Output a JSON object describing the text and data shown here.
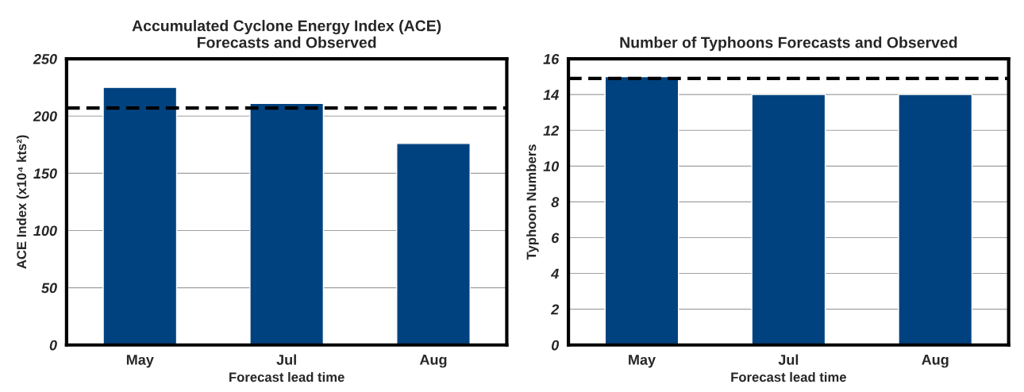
{
  "chart_data": [
    {
      "type": "bar",
      "title": "Accumulated Cyclone Energy Index (ACE)\nForecasts and Observed",
      "xlabel": "Forecast lead time",
      "ylabel": "ACE Index (x10⁴ kts²)",
      "categories": [
        "May",
        "Jul",
        "Aug"
      ],
      "values": [
        225,
        211,
        176
      ],
      "color": "#00427f",
      "ylim": [
        0,
        250
      ],
      "yticks": [
        0,
        50,
        100,
        150,
        200,
        250
      ],
      "grid": "y",
      "ref_lines": [
        {
          "axis": "y",
          "value": 207,
          "color": "#000000",
          "line_style": "dashed"
        }
      ]
    },
    {
      "type": "bar",
      "title": "Number of Typhoons Forecasts and Observed",
      "xlabel": "Forecast lead time",
      "ylabel": "Typhoon Numbers",
      "categories": [
        "May",
        "Jul",
        "Aug"
      ],
      "values": [
        15,
        14,
        14
      ],
      "color": "#00427f",
      "ylim": [
        0,
        16
      ],
      "yticks": [
        0,
        2,
        4,
        6,
        8,
        10,
        12,
        14,
        16
      ],
      "grid": "y",
      "ref_lines": [
        {
          "axis": "y",
          "value": 14.9,
          "color": "#000000",
          "line_style": "dashed"
        }
      ]
    }
  ]
}
